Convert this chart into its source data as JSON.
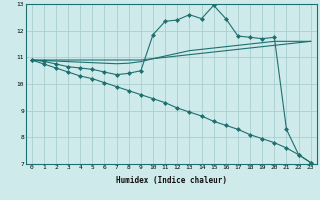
{
  "xlabel": "Humidex (Indice chaleur)",
  "bg_color": "#ceeaea",
  "grid_color": "#aacece",
  "line_color": "#1e7070",
  "xlim": [
    -0.5,
    23.5
  ],
  "ylim": [
    7,
    13
  ],
  "yticks": [
    7,
    8,
    9,
    10,
    11,
    12,
    13
  ],
  "xticks": [
    0,
    1,
    2,
    3,
    4,
    5,
    6,
    7,
    8,
    9,
    10,
    11,
    12,
    13,
    14,
    15,
    16,
    17,
    18,
    19,
    20,
    21,
    22,
    23
  ],
  "series": [
    {
      "x": [
        0,
        1,
        2,
        3,
        4,
        5,
        6,
        7,
        8,
        9,
        10,
        11,
        12,
        13,
        14,
        15,
        16,
        17,
        18,
        19,
        20,
        21,
        22,
        23
      ],
      "y": [
        10.9,
        10.9,
        10.9,
        10.9,
        10.9,
        10.9,
        10.9,
        10.9,
        10.9,
        10.9,
        10.95,
        11.0,
        11.05,
        11.1,
        11.15,
        11.2,
        11.25,
        11.3,
        11.35,
        11.4,
        11.45,
        11.5,
        11.55,
        11.6
      ],
      "marker": false
    },
    {
      "x": [
        0,
        1,
        2,
        3,
        4,
        5,
        6,
        7,
        8,
        9,
        10,
        11,
        12,
        13,
        14,
        15,
        16,
        17,
        18,
        19,
        20,
        21,
        22,
        23
      ],
      "y": [
        10.9,
        10.88,
        10.86,
        10.84,
        10.82,
        10.8,
        10.78,
        10.76,
        10.78,
        10.84,
        10.95,
        11.05,
        11.15,
        11.25,
        11.3,
        11.35,
        11.4,
        11.45,
        11.5,
        11.55,
        11.6,
        11.6,
        11.6,
        11.6
      ],
      "marker": false
    },
    {
      "x": [
        0,
        1,
        2,
        3,
        4,
        5,
        6,
        7,
        8,
        9,
        10,
        11,
        12,
        13,
        14,
        15,
        16,
        17,
        18,
        19,
        20,
        21,
        22,
        23
      ],
      "y": [
        10.9,
        10.85,
        10.75,
        10.65,
        10.6,
        10.55,
        10.45,
        10.35,
        10.4,
        10.5,
        11.85,
        12.35,
        12.4,
        12.6,
        12.45,
        12.95,
        12.45,
        11.8,
        11.75,
        11.7,
        11.75,
        8.3,
        7.35,
        7.05
      ],
      "marker": true
    },
    {
      "x": [
        0,
        1,
        2,
        3,
        4,
        5,
        6,
        7,
        8,
        9,
        10,
        11,
        12,
        13,
        14,
        15,
        16,
        17,
        18,
        19,
        20,
        21,
        22,
        23
      ],
      "y": [
        10.9,
        10.75,
        10.6,
        10.45,
        10.3,
        10.2,
        10.05,
        9.9,
        9.75,
        9.6,
        9.45,
        9.3,
        9.1,
        8.95,
        8.8,
        8.6,
        8.45,
        8.3,
        8.1,
        7.95,
        7.8,
        7.6,
        7.35,
        7.05
      ],
      "marker": true
    }
  ]
}
